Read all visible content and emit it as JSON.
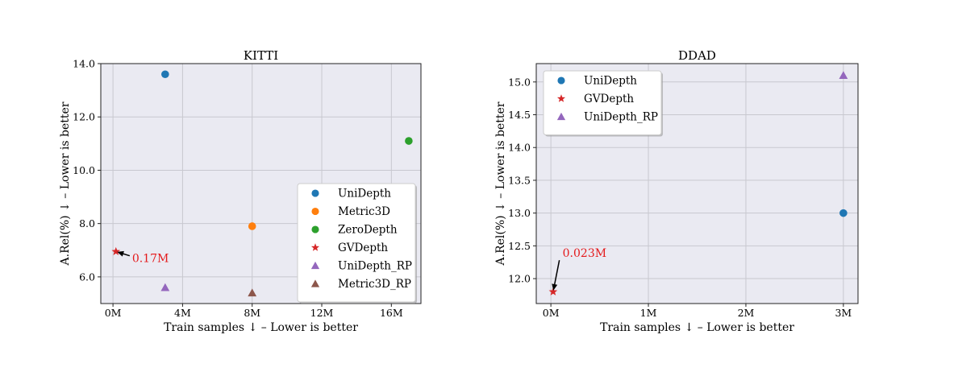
{
  "chart_data": [
    {
      "type": "scatter",
      "title": "KITTI",
      "xlabel": "Train samples ↓ – Lower is better",
      "ylabel": "A.Rel(%) ↓ – Lower is better",
      "xlim": [
        -0.7,
        17.7
      ],
      "ylim": [
        5.0,
        14.0
      ],
      "xticks": [
        0,
        4,
        8,
        12,
        16
      ],
      "xtick_labels": [
        "0M",
        "4M",
        "8M",
        "12M",
        "16M"
      ],
      "yticks": [
        6.0,
        8.0,
        10.0,
        12.0,
        14.0
      ],
      "ytick_labels": [
        "6.0",
        "8.0",
        "10.0",
        "12.0",
        "14.0"
      ],
      "grid": true,
      "legend_position": "lower-right",
      "series": [
        {
          "name": "UniDepth",
          "marker": "circle",
          "color": "#1f77b4",
          "points": [
            [
              3,
              13.6
            ]
          ]
        },
        {
          "name": "Metric3D",
          "marker": "circle",
          "color": "#ff7f0e",
          "points": [
            [
              8,
              7.9
            ]
          ]
        },
        {
          "name": "ZeroDepth",
          "marker": "circle",
          "color": "#2ca02c",
          "points": [
            [
              17,
              11.1
            ]
          ]
        },
        {
          "name": "GVDepth",
          "marker": "star",
          "color": "#d62728",
          "points": [
            [
              0.17,
              6.95
            ]
          ]
        },
        {
          "name": "UniDepth_RP",
          "marker": "triangle",
          "color": "#9467bd",
          "points": [
            [
              3,
              5.6
            ]
          ]
        },
        {
          "name": "Metric3D_RP",
          "marker": "triangle",
          "color": "#8c564b",
          "points": [
            [
              8,
              5.4
            ]
          ]
        }
      ],
      "annotation": {
        "text": "0.17M",
        "target": [
          0.17,
          6.95
        ],
        "text_at": [
          1.1,
          6.55
        ]
      }
    },
    {
      "type": "scatter",
      "title": "DDAD",
      "xlabel": "Train samples ↓ – Lower is better",
      "ylabel": "A.Rel(%) ↓ – Lower is better",
      "xlim": [
        -0.15,
        3.15
      ],
      "ylim": [
        11.62,
        15.28
      ],
      "xticks": [
        0,
        1,
        2,
        3
      ],
      "xtick_labels": [
        "0M",
        "1M",
        "2M",
        "3M"
      ],
      "yticks": [
        12.0,
        12.5,
        13.0,
        13.5,
        14.0,
        14.5,
        15.0
      ],
      "ytick_labels": [
        "12.0",
        "12.5",
        "13.0",
        "13.5",
        "14.0",
        "14.5",
        "15.0"
      ],
      "grid": true,
      "legend_position": "upper-left",
      "series": [
        {
          "name": "UniDepth",
          "marker": "circle",
          "color": "#1f77b4",
          "points": [
            [
              3,
              13.0
            ]
          ]
        },
        {
          "name": "GVDepth",
          "marker": "star",
          "color": "#d62728",
          "points": [
            [
              0.023,
              11.8
            ]
          ]
        },
        {
          "name": "UniDepth_RP",
          "marker": "triangle",
          "color": "#9467bd",
          "points": [
            [
              3,
              15.1
            ]
          ]
        }
      ],
      "annotation": {
        "text": "0.023M",
        "target": [
          0.023,
          11.8
        ],
        "text_at": [
          0.12,
          12.33
        ]
      }
    }
  ]
}
